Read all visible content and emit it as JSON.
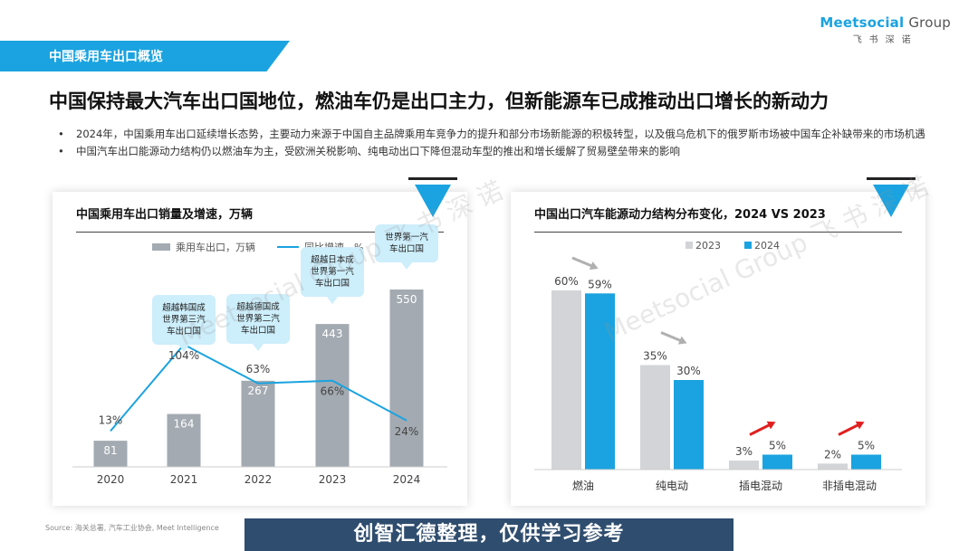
{
  "header": {
    "section_label": "中国乘用车出口概览",
    "logo_main": "Meetsocial",
    "logo_group": "Group",
    "logo_sub": "飞书深诺"
  },
  "headline": "中国保持最大汽车出口国地位，燃油车仍是出口主力，但新能源车已成推动出口增长的新动力",
  "bullets": [
    "2024年，中国乘用车出口延续增长态势，主要动力来源于中国自主品牌乘用车竞争力的提升和部分市场新能源的积极转型，以及俄乌危机下的俄罗斯市场被中国车企补缺带来的市场机遇",
    "中国汽车出口能源动力结构仍以燃油车为主，受欧洲关税影响、纯电动出口下降但混动车型的推出和增长缓解了贸易壁垒带来的影响"
  ],
  "watermark": "Meetsocial Group  飞 书 深 诺",
  "source": "Source: 海关总署, 汽车工业协会, Meet Intelligence",
  "banner": "创智汇德整理，仅供学习参考",
  "colors": {
    "accent": "#1aa3e0",
    "bar_gray": "#a3aab1",
    "light_gray": "#d2d4d7",
    "up_arrow": "#e02020",
    "down_arrow": "#b0b0b0",
    "banner_bg": "#2f4d6e"
  },
  "chart_data": [
    {
      "type": "bar",
      "title": "中国乘用车出口销量及增速，万辆",
      "categories": [
        "2020",
        "2021",
        "2022",
        "2023",
        "2024"
      ],
      "series": [
        {
          "name": "乘用车出口，万辆",
          "type": "bar",
          "values": [
            81,
            164,
            267,
            443,
            550
          ],
          "labels": [
            "81",
            "164",
            "267",
            "443",
            "550"
          ]
        },
        {
          "name": "同比增速，%",
          "type": "line",
          "values": [
            13,
            104,
            63,
            66,
            24
          ],
          "labels": [
            "13%",
            "104%",
            "63%",
            "66%",
            "24%"
          ]
        }
      ],
      "annotations": [
        {
          "category": "2021",
          "text": [
            "超越韩国成",
            "世界第三汽",
            "车出口国"
          ]
        },
        {
          "category": "2022",
          "text": [
            "超越德国成",
            "世界第二汽",
            "车出口国"
          ]
        },
        {
          "category": "2023",
          "text": [
            "超越日本成",
            "世界第一汽",
            "车出口国"
          ]
        },
        {
          "category": "2024",
          "text": [
            "世界第一汽",
            "车出口国"
          ]
        }
      ],
      "legend": "top"
    },
    {
      "type": "bar",
      "title": "中国出口汽车能源动力结构分布变化，2024 VS 2023",
      "categories": [
        "燃油",
        "纯电动",
        "插电混动",
        "非插电混动"
      ],
      "series": [
        {
          "name": "2023",
          "values": [
            60,
            35,
            3,
            2
          ],
          "labels": [
            "60%",
            "35%",
            "3%",
            "2%"
          ]
        },
        {
          "name": "2024",
          "values": [
            59,
            30,
            5,
            5
          ],
          "labels": [
            "59%",
            "30%",
            "5%",
            "5%"
          ]
        }
      ],
      "trend": [
        "down",
        "down",
        "up",
        "up"
      ],
      "legend": "top"
    }
  ]
}
